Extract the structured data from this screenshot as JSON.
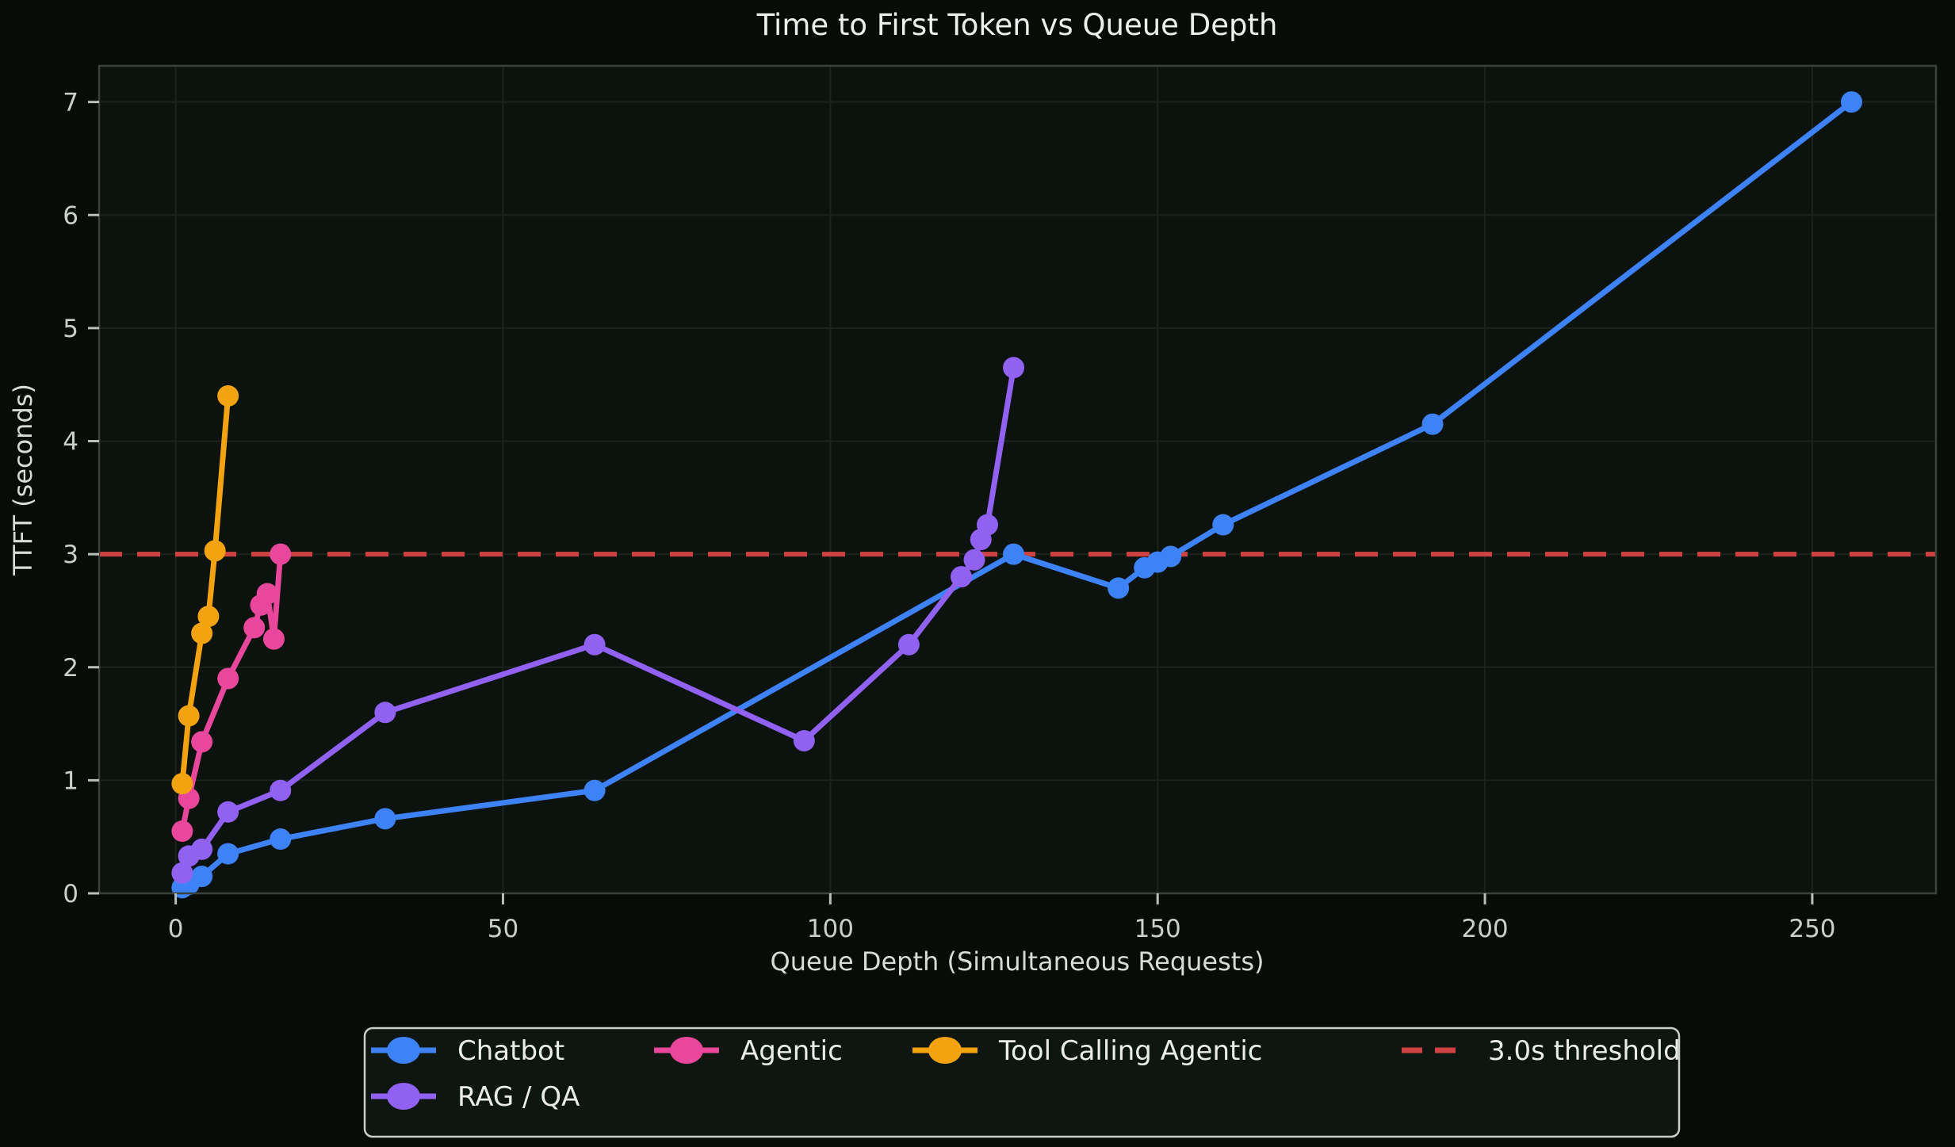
{
  "title": "Time to First Token vs Queue Depth",
  "chart_data": {
    "type": "line",
    "title": "Time to First Token vs Queue Depth",
    "xlabel": "Queue Depth (Simultaneous Requests)",
    "ylabel": "TTFT (seconds)",
    "xlim": [
      -11.7,
      268.9
    ],
    "ylim": [
      0,
      7.32
    ],
    "x_ticks": [
      0,
      50,
      100,
      150,
      200,
      250
    ],
    "y_ticks": [
      0,
      1,
      2,
      3,
      4,
      5,
      6,
      7
    ],
    "grid": true,
    "legend_position": "bottom",
    "series": [
      {
        "name": "Chatbot",
        "color": "#3d82f7",
        "points": [
          [
            1,
            0.05
          ],
          [
            2,
            0.08
          ],
          [
            4,
            0.15
          ],
          [
            8,
            0.35
          ],
          [
            16,
            0.48
          ],
          [
            32,
            0.66
          ],
          [
            64,
            0.91
          ],
          [
            128,
            3.0
          ],
          [
            144,
            2.7
          ],
          [
            148,
            2.88
          ],
          [
            150,
            2.93
          ],
          [
            152,
            2.98
          ],
          [
            160,
            3.26
          ],
          [
            192,
            4.15
          ],
          [
            256,
            7.0
          ]
        ]
      },
      {
        "name": "RAG / QA",
        "color": "#9161f2",
        "points": [
          [
            1,
            0.18
          ],
          [
            2,
            0.33
          ],
          [
            4,
            0.39
          ],
          [
            8,
            0.72
          ],
          [
            16,
            0.91
          ],
          [
            32,
            1.6
          ],
          [
            64,
            2.2
          ],
          [
            96,
            1.35
          ],
          [
            112,
            2.2
          ],
          [
            120,
            2.8
          ],
          [
            122,
            2.95
          ],
          [
            123,
            3.13
          ],
          [
            124,
            3.26
          ],
          [
            128,
            4.65
          ]
        ]
      },
      {
        "name": "Agentic",
        "color": "#e8479b",
        "points": [
          [
            1,
            0.55
          ],
          [
            2,
            0.84
          ],
          [
            4,
            1.34
          ],
          [
            8,
            1.9
          ],
          [
            12,
            2.35
          ],
          [
            13,
            2.55
          ],
          [
            14,
            2.65
          ],
          [
            15,
            2.25
          ],
          [
            16,
            3.0
          ]
        ]
      },
      {
        "name": "Tool Calling Agentic",
        "color": "#f2a30f",
        "points": [
          [
            1,
            0.97
          ],
          [
            2,
            1.57
          ],
          [
            4,
            2.3
          ],
          [
            5,
            2.45
          ],
          [
            6,
            3.03
          ],
          [
            8,
            4.4
          ]
        ]
      }
    ],
    "threshold": {
      "label": "3.0s threshold",
      "value": 3.0,
      "color": "#cf4242"
    }
  },
  "legend": {
    "entries": [
      {
        "label": "Chatbot",
        "color": "#3d82f7",
        "marker": "line-dot",
        "row": 0,
        "col": 0
      },
      {
        "label": "Agentic",
        "color": "#e8479b",
        "marker": "line-dot",
        "row": 0,
        "col": 1
      },
      {
        "label": "Tool Calling Agentic",
        "color": "#f2a30f",
        "marker": "line-dot",
        "row": 0,
        "col": 2
      },
      {
        "label": "3.0s threshold",
        "color": "#cf4242",
        "marker": "dashed-line",
        "row": 0,
        "col": 3
      },
      {
        "label": "RAG / QA",
        "color": "#9161f2",
        "marker": "line-dot",
        "row": 1,
        "col": 0
      }
    ]
  },
  "style": {
    "figure_bg": "#070c09",
    "plot_bg": "#0c130f",
    "grid_color": "#1a231d",
    "spine_color": "#39423c",
    "tick_color": "#b9c0bb",
    "tick_label_color": "#c9d0cb",
    "axis_label_color": "#d7dcd7",
    "title_color": "#eef0ee",
    "legend_bg": "#0e1611",
    "legend_border": "#c9d0cb",
    "legend_text": "#e9ece9"
  }
}
